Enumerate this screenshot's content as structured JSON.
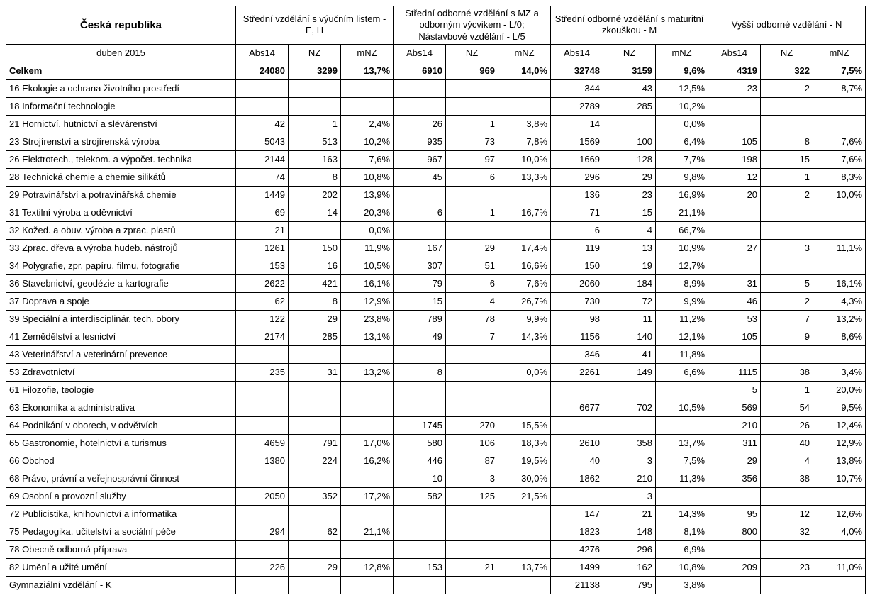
{
  "title": "Česká republika",
  "period": "duben 2015",
  "groups": [
    "Střední vzdělání\ns výučním listem - E, H",
    "Střední odborné vzdělání s MZ\na odborným výcvikem - L/0;\nNástavbové vzdělání - L/5",
    "Střední odborné vzdělání\ns maturitní zkouškou - M",
    "Vyšší odborné vzdělání - N"
  ],
  "subcols": [
    "Abs14",
    "NZ",
    "mNZ"
  ],
  "total_label": "Celkem",
  "total": [
    "24080",
    "3299",
    "13,7%",
    "6910",
    "969",
    "14,0%",
    "32748",
    "3159",
    "9,6%",
    "4319",
    "322",
    "7,5%"
  ],
  "rows": [
    {
      "label": "16 Ekologie a ochrana životního prostředí",
      "v": [
        "",
        "",
        "",
        "",
        "",
        "",
        "344",
        "43",
        "12,5%",
        "23",
        "2",
        "8,7%"
      ]
    },
    {
      "label": "18 Informační technologie",
      "v": [
        "",
        "",
        "",
        "",
        "",
        "",
        "2789",
        "285",
        "10,2%",
        "",
        "",
        ""
      ]
    },
    {
      "label": "21 Hornictví, hutnictví a slévárenství",
      "v": [
        "42",
        "1",
        "2,4%",
        "26",
        "1",
        "3,8%",
        "14",
        "",
        "0,0%",
        "",
        "",
        ""
      ]
    },
    {
      "label": "23 Strojírenství a strojírenská výroba",
      "v": [
        "5043",
        "513",
        "10,2%",
        "935",
        "73",
        "7,8%",
        "1569",
        "100",
        "6,4%",
        "105",
        "8",
        "7,6%"
      ]
    },
    {
      "label": "26 Elektrotech., telekom. a výpočet. technika",
      "v": [
        "2144",
        "163",
        "7,6%",
        "967",
        "97",
        "10,0%",
        "1669",
        "128",
        "7,7%",
        "198",
        "15",
        "7,6%"
      ]
    },
    {
      "label": "28 Technická chemie a chemie silikátů",
      "v": [
        "74",
        "8",
        "10,8%",
        "45",
        "6",
        "13,3%",
        "296",
        "29",
        "9,8%",
        "12",
        "1",
        "8,3%"
      ]
    },
    {
      "label": "29 Potravinářství a potravinářská chemie",
      "v": [
        "1449",
        "202",
        "13,9%",
        "",
        "",
        "",
        "136",
        "23",
        "16,9%",
        "20",
        "2",
        "10,0%"
      ]
    },
    {
      "label": "31 Textilní výroba a oděvnictví",
      "v": [
        "69",
        "14",
        "20,3%",
        "6",
        "1",
        "16,7%",
        "71",
        "15",
        "21,1%",
        "",
        "",
        ""
      ]
    },
    {
      "label": "32 Kožed. a obuv. výroba a zprac. plastů",
      "v": [
        "21",
        "",
        "0,0%",
        "",
        "",
        "",
        "6",
        "4",
        "66,7%",
        "",
        "",
        ""
      ]
    },
    {
      "label": "33 Zprac. dřeva a výroba hudeb. nástrojů",
      "v": [
        "1261",
        "150",
        "11,9%",
        "167",
        "29",
        "17,4%",
        "119",
        "13",
        "10,9%",
        "27",
        "3",
        "11,1%"
      ]
    },
    {
      "label": "34 Polygrafie, zpr. papíru, filmu, fotografie",
      "v": [
        "153",
        "16",
        "10,5%",
        "307",
        "51",
        "16,6%",
        "150",
        "19",
        "12,7%",
        "",
        "",
        ""
      ]
    },
    {
      "label": "36 Stavebnictví, geodézie a kartografie",
      "v": [
        "2622",
        "421",
        "16,1%",
        "79",
        "6",
        "7,6%",
        "2060",
        "184",
        "8,9%",
        "31",
        "5",
        "16,1%"
      ]
    },
    {
      "label": "37 Doprava a spoje",
      "v": [
        "62",
        "8",
        "12,9%",
        "15",
        "4",
        "26,7%",
        "730",
        "72",
        "9,9%",
        "46",
        "2",
        "4,3%"
      ]
    },
    {
      "label": "39 Speciální a interdisciplinár. tech. obory",
      "v": [
        "122",
        "29",
        "23,8%",
        "789",
        "78",
        "9,9%",
        "98",
        "11",
        "11,2%",
        "53",
        "7",
        "13,2%"
      ]
    },
    {
      "label": "41 Zemědělství a lesnictví",
      "v": [
        "2174",
        "285",
        "13,1%",
        "49",
        "7",
        "14,3%",
        "1156",
        "140",
        "12,1%",
        "105",
        "9",
        "8,6%"
      ]
    },
    {
      "label": "43 Veterinářství a veterinární prevence",
      "v": [
        "",
        "",
        "",
        "",
        "",
        "",
        "346",
        "41",
        "11,8%",
        "",
        "",
        ""
      ]
    },
    {
      "label": "53 Zdravotnictví",
      "v": [
        "235",
        "31",
        "13,2%",
        "8",
        "",
        "0,0%",
        "2261",
        "149",
        "6,6%",
        "1115",
        "38",
        "3,4%"
      ]
    },
    {
      "label": "61 Filozofie, teologie",
      "v": [
        "",
        "",
        "",
        "",
        "",
        "",
        "",
        "",
        "",
        "5",
        "1",
        "20,0%"
      ]
    },
    {
      "label": "63 Ekonomika a administrativa",
      "v": [
        "",
        "",
        "",
        "",
        "",
        "",
        "6677",
        "702",
        "10,5%",
        "569",
        "54",
        "9,5%"
      ]
    },
    {
      "label": "64 Podnikání v oborech, v odvětvích",
      "v": [
        "",
        "",
        "",
        "1745",
        "270",
        "15,5%",
        "",
        "",
        "",
        "210",
        "26",
        "12,4%"
      ]
    },
    {
      "label": "65 Gastronomie, hotelnictví a turismus",
      "v": [
        "4659",
        "791",
        "17,0%",
        "580",
        "106",
        "18,3%",
        "2610",
        "358",
        "13,7%",
        "311",
        "40",
        "12,9%"
      ]
    },
    {
      "label": "66 Obchod",
      "v": [
        "1380",
        "224",
        "16,2%",
        "446",
        "87",
        "19,5%",
        "40",
        "3",
        "7,5%",
        "29",
        "4",
        "13,8%"
      ]
    },
    {
      "label": "68 Právo, právní a veřejnosprávní činnost",
      "v": [
        "",
        "",
        "",
        "10",
        "3",
        "30,0%",
        "1862",
        "210",
        "11,3%",
        "356",
        "38",
        "10,7%"
      ]
    },
    {
      "label": "69 Osobní a provozní služby",
      "v": [
        "2050",
        "352",
        "17,2%",
        "582",
        "125",
        "21,5%",
        "",
        "3",
        "",
        "",
        "",
        ""
      ]
    },
    {
      "label": "72 Publicistika, knihovnictví a informatika",
      "v": [
        "",
        "",
        "",
        "",
        "",
        "",
        "147",
        "21",
        "14,3%",
        "95",
        "12",
        "12,6%"
      ]
    },
    {
      "label": "75 Pedagogika, učitelství a sociální péče",
      "v": [
        "294",
        "62",
        "21,1%",
        "",
        "",
        "",
        "1823",
        "148",
        "8,1%",
        "800",
        "32",
        "4,0%"
      ]
    },
    {
      "label": "78 Obecně odborná příprava",
      "v": [
        "",
        "",
        "",
        "",
        "",
        "",
        "4276",
        "296",
        "6,9%",
        "",
        "",
        ""
      ]
    },
    {
      "label": "82 Umění a užité umění",
      "v": [
        "226",
        "29",
        "12,8%",
        "153",
        "21",
        "13,7%",
        "1499",
        "162",
        "10,8%",
        "209",
        "23",
        "11,0%"
      ]
    }
  ],
  "footer_label": "Gymnaziální vzdělání - K",
  "footer": [
    "",
    "",
    "",
    "",
    "",
    "",
    "21138",
    "795",
    "3,8%",
    "",
    "",
    ""
  ]
}
